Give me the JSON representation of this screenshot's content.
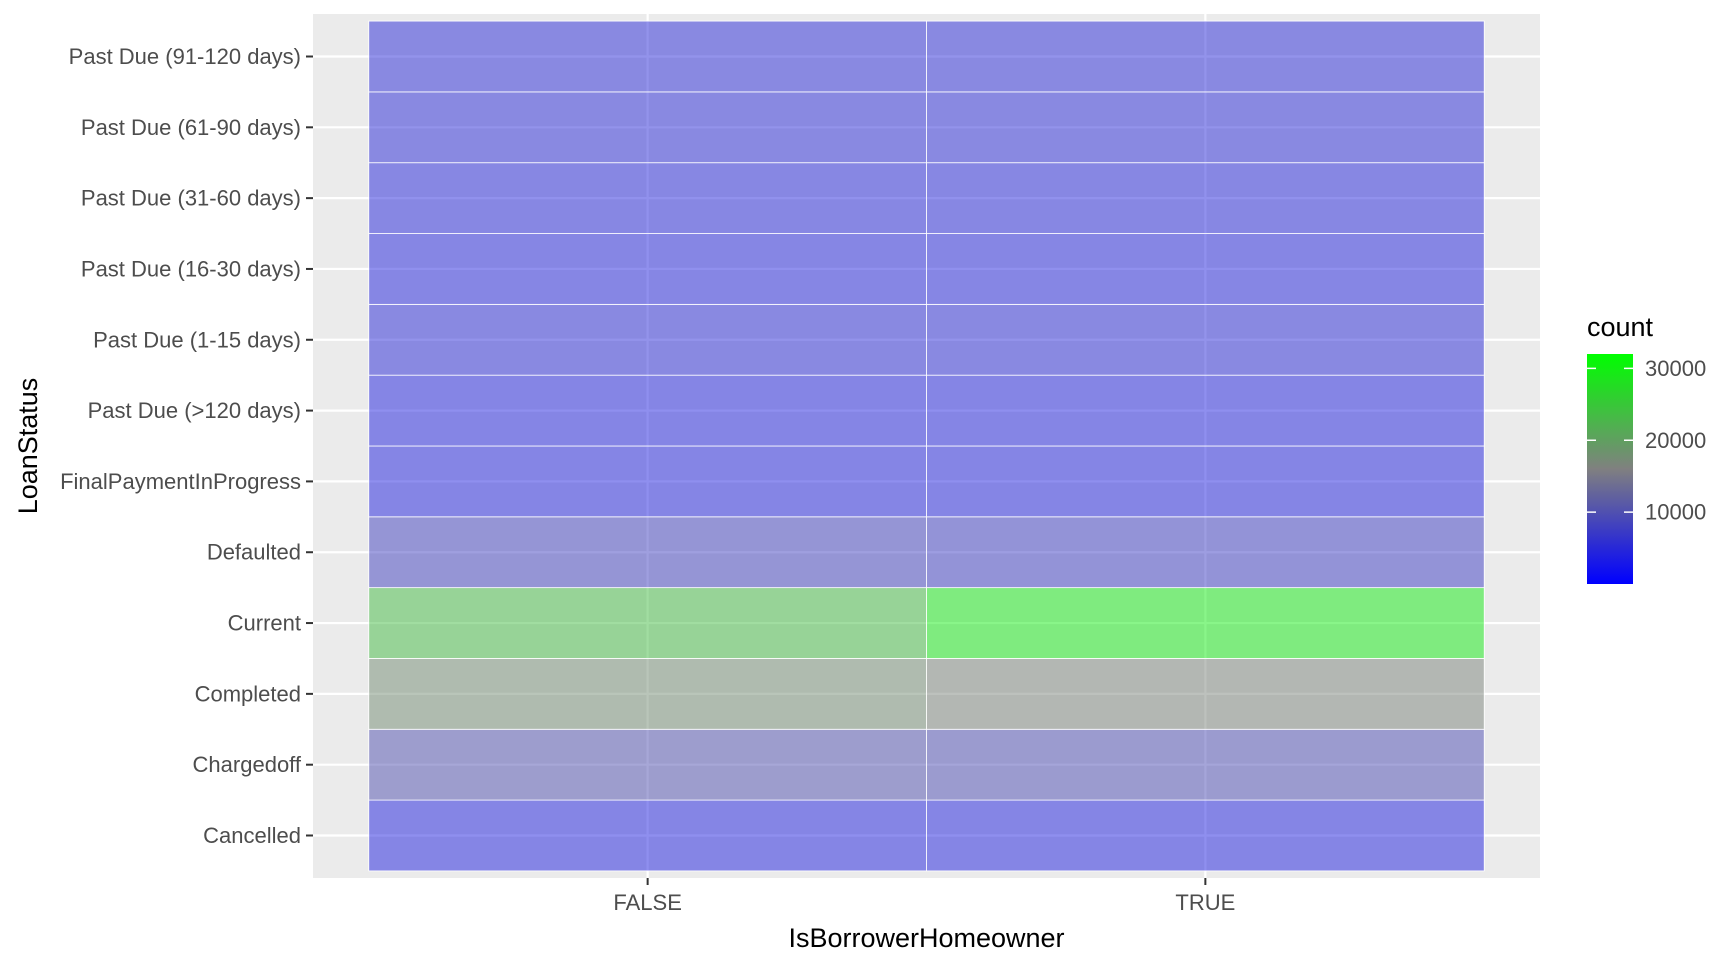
{
  "chart_data": {
    "type": "heatmap",
    "xlabel": "IsBorrowerHomeowner",
    "ylabel": "LoanStatus",
    "x_categories": [
      "FALSE",
      "TRUE"
    ],
    "y_categories": [
      "Cancelled",
      "Chargedoff",
      "Completed",
      "Current",
      "Defaulted",
      "FinalPaymentInProgress",
      "Past Due (>120 days)",
      "Past Due (1-15 days)",
      "Past Due (16-30 days)",
      "Past Due (31-60 days)",
      "Past Due (61-90 days)",
      "Past Due (91-120 days)"
    ],
    "cells": [
      {
        "x": "FALSE",
        "y": "Cancelled",
        "count": 4000
      },
      {
        "x": "TRUE",
        "y": "Cancelled",
        "count": 4000
      },
      {
        "x": "FALSE",
        "y": "Chargedoff",
        "count": 10000
      },
      {
        "x": "TRUE",
        "y": "Chargedoff",
        "count": 9500
      },
      {
        "x": "FALSE",
        "y": "Completed",
        "count": 17500
      },
      {
        "x": "TRUE",
        "y": "Completed",
        "count": 16500
      },
      {
        "x": "FALSE",
        "y": "Current",
        "count": 23500
      },
      {
        "x": "TRUE",
        "y": "Current",
        "count": 29500
      },
      {
        "x": "FALSE",
        "y": "Defaulted",
        "count": 8000
      },
      {
        "x": "TRUE",
        "y": "Defaulted",
        "count": 7500
      },
      {
        "x": "FALSE",
        "y": "FinalPaymentInProgress",
        "count": 4000
      },
      {
        "x": "TRUE",
        "y": "FinalPaymentInProgress",
        "count": 4000
      },
      {
        "x": "FALSE",
        "y": "Past Due (>120 days)",
        "count": 4000
      },
      {
        "x": "TRUE",
        "y": "Past Due (>120 days)",
        "count": 4000
      },
      {
        "x": "FALSE",
        "y": "Past Due (1-15 days)",
        "count": 5000
      },
      {
        "x": "TRUE",
        "y": "Past Due (1-15 days)",
        "count": 5000
      },
      {
        "x": "FALSE",
        "y": "Past Due (16-30 days)",
        "count": 4200
      },
      {
        "x": "TRUE",
        "y": "Past Due (16-30 days)",
        "count": 4200
      },
      {
        "x": "FALSE",
        "y": "Past Due (31-60 days)",
        "count": 4500
      },
      {
        "x": "TRUE",
        "y": "Past Due (31-60 days)",
        "count": 4500
      },
      {
        "x": "FALSE",
        "y": "Past Due (61-90 days)",
        "count": 5000
      },
      {
        "x": "TRUE",
        "y": "Past Due (61-90 days)",
        "count": 5000
      },
      {
        "x": "FALSE",
        "y": "Past Due (91-120 days)",
        "count": 5000
      },
      {
        "x": "TRUE",
        "y": "Past Due (91-120 days)",
        "count": 5000
      }
    ],
    "legend": {
      "title": "count",
      "position": "right",
      "range": [
        0,
        32000
      ],
      "ticks": [
        10000,
        20000,
        30000
      ],
      "low_color": "#0000ff",
      "mid_color": "#808080",
      "high_color": "#00ff00"
    },
    "grid": true,
    "colors": {
      "panel_background": "#ebebeb",
      "grid_line": "#ffffff",
      "axis_text": "#4d4d4d",
      "axis_title": "#000000"
    }
  }
}
